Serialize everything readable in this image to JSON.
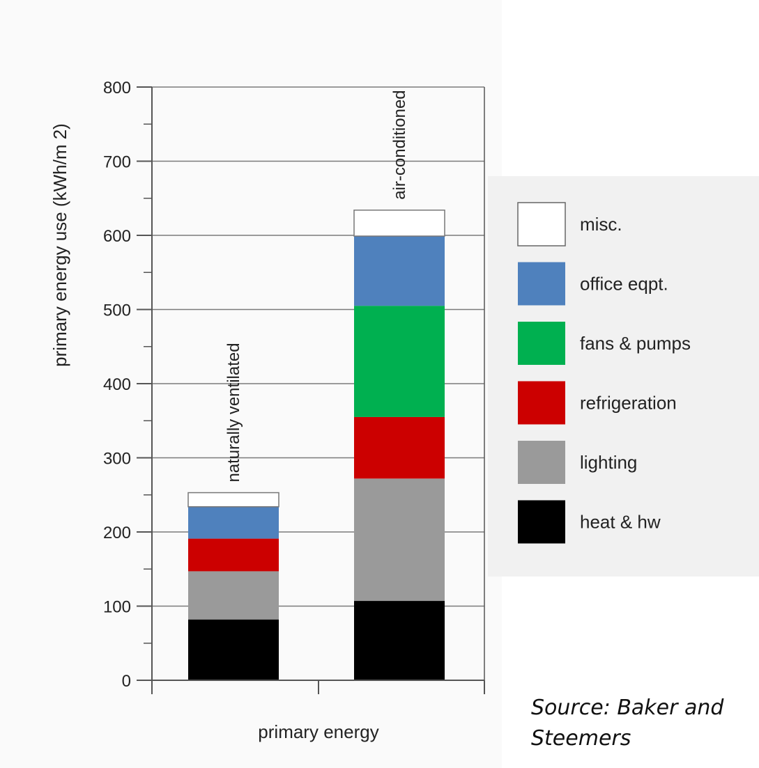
{
  "chart_data": {
    "type": "bar",
    "stacked": true,
    "title": "",
    "xlabel": "primary energy",
    "ylabel": "primary energy use (kWh/m 2)",
    "ylim": [
      0,
      800
    ],
    "y_ticks": [
      0,
      100,
      200,
      300,
      400,
      500,
      600,
      700,
      800
    ],
    "grid": true,
    "legend_position": "right",
    "categories": [
      "naturally ventilated",
      "air-conditioned"
    ],
    "series": [
      {
        "name": "heat & hw",
        "color": "#000000",
        "values": [
          82,
          107
        ]
      },
      {
        "name": "lighting",
        "color": "#9a9a9a",
        "values": [
          65,
          165
        ]
      },
      {
        "name": "refrigeration",
        "color": "#cc0000",
        "values": [
          44,
          83
        ]
      },
      {
        "name": "fans & pumps",
        "color": "#00b050",
        "values": [
          0,
          150
        ]
      },
      {
        "name": "office eqpt.",
        "color": "#4f81bd",
        "values": [
          43,
          94
        ]
      },
      {
        "name": "misc.",
        "color": "#ffffff",
        "values": [
          19,
          35
        ]
      }
    ]
  },
  "source_text": "Source: Baker and Steemers"
}
